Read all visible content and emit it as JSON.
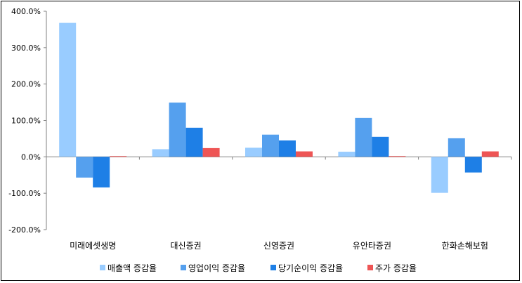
{
  "chart_data": {
    "type": "bar",
    "categories": [
      "미래에셋생명",
      "대신증권",
      "신영증권",
      "유안타증권",
      "한화손해보험"
    ],
    "series": [
      {
        "name": "매출액 증감율",
        "color": "#99ccff",
        "values": [
          368,
          21,
          25,
          14,
          -99
        ]
      },
      {
        "name": "영업이익 증감율",
        "color": "#55a0ee",
        "values": [
          -57,
          149,
          61,
          107,
          51
        ]
      },
      {
        "name": "당기순이익 증감율",
        "color": "#1e7fe6",
        "values": [
          -84,
          80,
          45,
          55,
          -43
        ]
      },
      {
        "name": "주가 증감율",
        "color": "#ee5555",
        "values": [
          2,
          24,
          15,
          2,
          15
        ]
      }
    ],
    "ylim": [
      -200,
      400
    ],
    "yticks": [
      "-200.0%",
      "-100.0%",
      "0.0%",
      "100.0%",
      "200.0%",
      "300.0%",
      "400.0%"
    ],
    "grid": false,
    "legend_position": "bottom"
  }
}
